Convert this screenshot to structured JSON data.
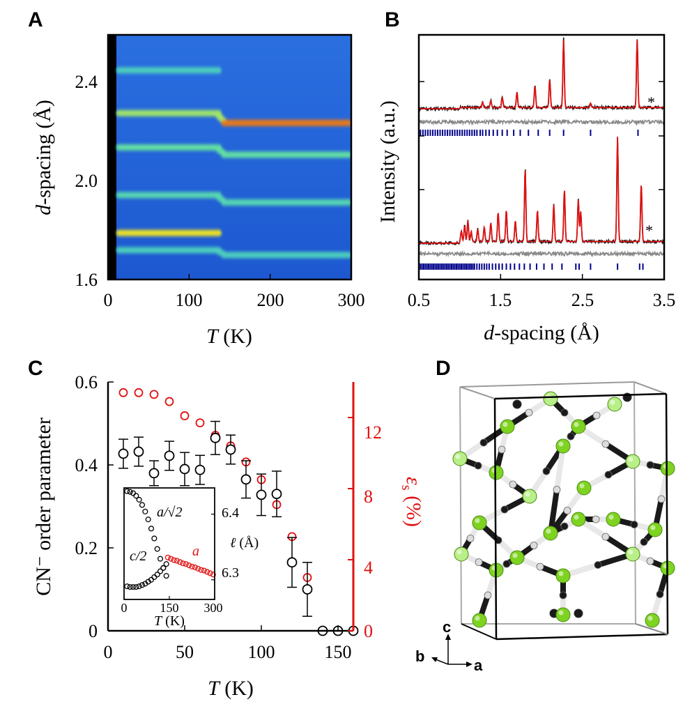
{
  "chart_data": [
    {
      "panel": "A",
      "type": "heatmap",
      "xlabel_var": "T",
      "xlabel_unit": " (K)",
      "ylabel_var": "d",
      "ylabel_rest": "-spacing (Å)",
      "xlim": [
        0,
        300
      ],
      "ylim": [
        1.6,
        2.6
      ],
      "xticks": [
        "0",
        "100",
        "200",
        "300"
      ],
      "yticks": [
        "1.6",
        "2.0",
        "2.4"
      ],
      "ytick_values": [
        1.6,
        2.0,
        2.4
      ],
      "transition_T": 140,
      "background_color": "#1f5fd6",
      "bands": [
        {
          "d_low_T": 2.455,
          "d_high_T": null,
          "intensity": 0.45
        },
        {
          "d_low_T": 2.28,
          "d_high_T": 2.24,
          "intensity": 0.7,
          "intensity_high_T": 1.0
        },
        {
          "d_low_T": 2.14,
          "d_high_T": 2.11,
          "intensity": 0.55
        },
        {
          "d_low_T": 1.945,
          "d_high_T": 1.915,
          "intensity": 0.5
        },
        {
          "d_low_T": 1.79,
          "d_high_T": null,
          "intensity": 0.85
        },
        {
          "d_low_T": 1.72,
          "d_high_T": 1.7,
          "intensity": 0.45
        }
      ]
    },
    {
      "panel": "B",
      "type": "line",
      "xlabel_var": "d",
      "xlabel_rest": "-spacing (Å)",
      "ylabel": "Intensity (a.u.)",
      "xlim": [
        0.5,
        3.5
      ],
      "xticks": [
        "0.5",
        "1.5",
        "2.5",
        "3.5"
      ],
      "xtick_values": [
        0.5,
        1.5,
        2.5,
        3.5
      ],
      "series": [
        {
          "role": "observed",
          "color": "#000000"
        },
        {
          "role": "calculated",
          "color": "#e01010"
        },
        {
          "role": "difference",
          "color": "#888888"
        },
        {
          "role": "reflection ticks",
          "color": "#00008b"
        }
      ],
      "upper_pattern": {
        "baseline_level": 0.03,
        "peaks": [
          [
            1.28,
            0.06
          ],
          [
            1.38,
            0.08
          ],
          [
            1.52,
            0.12
          ],
          [
            1.7,
            0.18
          ],
          [
            1.92,
            0.25
          ],
          [
            2.1,
            0.33
          ],
          [
            2.27,
            0.78
          ],
          [
            2.6,
            0.05
          ],
          [
            3.17,
            0.78
          ]
        ],
        "annotation_x": 3.28,
        "ticks_d": [
          0.52,
          0.55,
          0.58,
          0.61,
          0.64,
          0.67,
          0.7,
          0.73,
          0.76,
          0.79,
          0.82,
          0.85,
          0.88,
          0.91,
          0.94,
          0.97,
          1.0,
          1.03,
          1.06,
          1.09,
          1.12,
          1.15,
          1.18,
          1.21,
          1.25,
          1.28,
          1.32,
          1.36,
          1.41,
          1.46,
          1.52,
          1.58,
          1.66,
          1.74,
          1.84,
          1.96,
          2.1,
          2.27,
          2.6,
          3.18
        ]
      },
      "lower_pattern": {
        "peaks": [
          [
            1.02,
            0.1
          ],
          [
            1.06,
            0.15
          ],
          [
            1.1,
            0.2
          ],
          [
            1.14,
            0.1
          ],
          [
            1.22,
            0.12
          ],
          [
            1.3,
            0.14
          ],
          [
            1.38,
            0.18
          ],
          [
            1.47,
            0.28
          ],
          [
            1.57,
            0.3
          ],
          [
            1.68,
            0.2
          ],
          [
            1.8,
            0.7
          ],
          [
            1.95,
            0.3
          ],
          [
            2.15,
            0.35
          ],
          [
            2.28,
            0.5
          ],
          [
            2.45,
            0.4
          ],
          [
            2.48,
            0.28
          ],
          [
            2.93,
            1.0
          ],
          [
            3.22,
            0.55
          ]
        ],
        "annotation_x": 3.27,
        "ticks_d": [
          0.52,
          0.54,
          0.56,
          0.58,
          0.6,
          0.62,
          0.64,
          0.66,
          0.68,
          0.7,
          0.72,
          0.74,
          0.76,
          0.78,
          0.8,
          0.82,
          0.84,
          0.86,
          0.88,
          0.9,
          0.92,
          0.94,
          0.96,
          0.98,
          1.0,
          1.02,
          1.04,
          1.06,
          1.08,
          1.1,
          1.12,
          1.14,
          1.16,
          1.18,
          1.21,
          1.24,
          1.27,
          1.3,
          1.33,
          1.36,
          1.4,
          1.44,
          1.48,
          1.52,
          1.57,
          1.62,
          1.67,
          1.73,
          1.79,
          1.86,
          1.94,
          2.03,
          2.13,
          2.25,
          2.42,
          2.46,
          2.6,
          2.93,
          3.2,
          3.24
        ]
      },
      "annotation": "*"
    },
    {
      "panel": "C",
      "type": "scatter",
      "xlabel_var": "T",
      "xlabel_unit": " (K)",
      "ylabel": "CN⁻ order parameter",
      "y2label": "ε_s (%)",
      "y2label_display": "ε",
      "y2label_sub": "s",
      "y2label_rest": " (%)",
      "xlim": [
        0,
        160
      ],
      "ylim": [
        0,
        0.6
      ],
      "y2lim": [
        0,
        14
      ],
      "xticks": [
        "0",
        "50",
        "100",
        "150"
      ],
      "yticks": [
        "0",
        "0.2",
        "0.4",
        "0.6"
      ],
      "y2ticks": [
        "0",
        "4",
        "8",
        "12"
      ],
      "y2_color": "#e01010",
      "series": [
        {
          "name": "CN⁻ order parameter",
          "color": "#000000",
          "x": [
            10,
            20,
            30,
            40,
            50,
            60,
            70,
            80,
            90,
            100,
            110,
            120,
            130,
            140,
            150,
            160
          ],
          "y": [
            0.427,
            0.432,
            0.38,
            0.422,
            0.39,
            0.388,
            0.465,
            0.437,
            0.365,
            0.328,
            0.33,
            0.165,
            0.1,
            0,
            0,
            0
          ],
          "err": [
            0.035,
            0.035,
            0.03,
            0.035,
            0.04,
            0.035,
            0.04,
            0.035,
            0.045,
            0.05,
            0.055,
            0.06,
            0.065,
            0,
            0,
            0
          ]
        },
        {
          "name": "ε_s",
          "color": "#e01010",
          "x": [
            10,
            20,
            30,
            40,
            50,
            60,
            70,
            80,
            90,
            100,
            110,
            120,
            130
          ],
          "y": [
            13.4,
            13.4,
            13.3,
            12.9,
            12.1,
            11.7,
            11.0,
            10.4,
            9.5,
            8.5,
            7.1,
            5.3,
            3.0
          ]
        }
      ],
      "inset": {
        "xlabel_var": "T",
        "xlabel_unit": " (K)",
        "ylabel_var": "ℓ",
        "ylabel_unit": " (Å)",
        "xlim": [
          0,
          300
        ],
        "ylim": [
          6.27,
          6.44
        ],
        "xticks": [
          "0",
          "150",
          "300"
        ],
        "yticks": [
          "6.3",
          "6.4"
        ],
        "ytick_values": [
          6.3,
          6.4
        ],
        "labels": {
          "upper": "a/√2",
          "lower": "c/2",
          "red": "a"
        },
        "series": [
          {
            "name": "a/√2",
            "color": "#000000",
            "x": [
              10,
              20,
              30,
              40,
              50,
              60,
              70,
              80,
              90,
              100,
              110,
              120,
              130,
              140
            ],
            "y": [
              6.435,
              6.434,
              6.432,
              6.428,
              6.422,
              6.414,
              6.404,
              6.392,
              6.378,
              6.363,
              6.347,
              6.332,
              6.318,
              6.306
            ]
          },
          {
            "name": "c/2",
            "color": "#000000",
            "x": [
              10,
              20,
              30,
              40,
              50,
              60,
              70,
              80,
              90,
              100,
              110,
              120,
              130,
              140
            ],
            "y": [
              6.29,
              6.289,
              6.289,
              6.289,
              6.29,
              6.292,
              6.294,
              6.297,
              6.3,
              6.304,
              6.308,
              6.313,
              6.318,
              6.324
            ]
          },
          {
            "name": "a",
            "color": "#e01010",
            "x": [
              145,
              155,
              165,
              175,
              185,
              195,
              205,
              215,
              225,
              235,
              245,
              255,
              265,
              275,
              285,
              295
            ],
            "y": [
              6.334,
              6.332,
              6.33,
              6.329,
              6.327,
              6.325,
              6.324,
              6.322,
              6.32,
              6.319,
              6.317,
              6.315,
              6.314,
              6.312,
              6.31,
              6.308
            ]
          }
        ]
      }
    },
    {
      "panel": "D",
      "type": "diagram",
      "axis_labels": {
        "c": "c",
        "b": "b",
        "a": "a"
      },
      "colors": {
        "metal": "#7ed321",
        "metal_light": "#b8ef88",
        "carbon": "#1a1a1a",
        "nitrogen": "#e8e8e8",
        "cell": "#000000"
      }
    }
  ],
  "panel_labels": [
    "A",
    "B",
    "C",
    "D"
  ]
}
